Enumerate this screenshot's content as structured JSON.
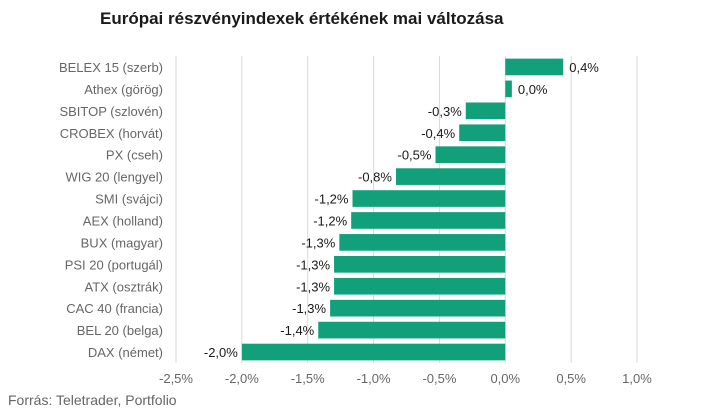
{
  "chart_data": {
    "type": "bar",
    "orientation": "horizontal",
    "title": "Európai részvényindexek értékének mai változása",
    "categories": [
      "BELEX 15 (szerb)",
      "Athex (görög)",
      "SBITOP (szlovén)",
      "CROBEX (horvát)",
      "PX (cseh)",
      "WIG 20 (lengyel)",
      "SMI (svájci)",
      "AEX (holland)",
      "BUX (magyar)",
      "PSI 20 (portugál)",
      "ATX (osztrák)",
      "CAC 40 (francia)",
      "BEL 20 (belga)",
      "DAX (német)"
    ],
    "values": [
      0.44,
      0.05,
      -0.3,
      -0.35,
      -0.53,
      -0.83,
      -1.16,
      -1.17,
      -1.26,
      -1.3,
      -1.3,
      -1.33,
      -1.42,
      -2.0
    ],
    "data_labels": [
      "0,4%",
      "0,0%",
      "-0,3%",
      "-0,4%",
      "-0,5%",
      "-0,8%",
      "-1,2%",
      "-1,2%",
      "-1,3%",
      "-1,3%",
      "-1,3%",
      "-1,3%",
      "-1,4%",
      "-2,0%"
    ],
    "xlim": [
      -2.5,
      1.0
    ],
    "ticks": [
      -2.5,
      -2.0,
      -1.5,
      -1.0,
      -0.5,
      0.0,
      0.5,
      1.0
    ],
    "tick_labels": [
      "-2,5%",
      "-2,0%",
      "-1,5%",
      "-1,0%",
      "-0,5%",
      "0,0%",
      "0,5%",
      "1,0%"
    ],
    "xlabel": "",
    "ylabel": "",
    "grid": true,
    "bar_color": "#12a07a",
    "grid_color": "#d9d9d9"
  },
  "source": "Forrás: Teletrader, Portfolio"
}
